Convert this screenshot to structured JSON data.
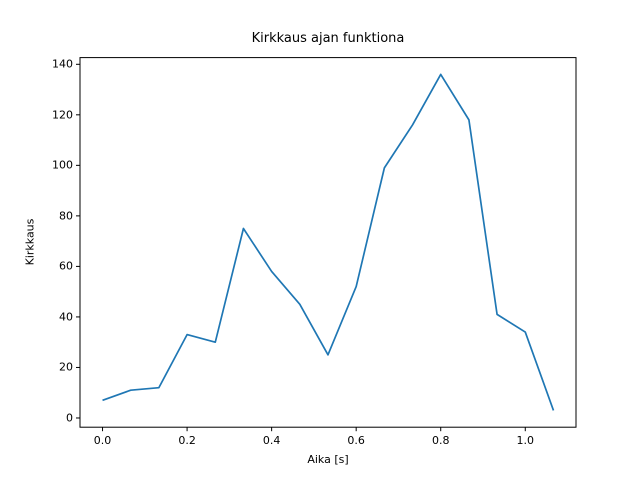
{
  "chart_data": {
    "type": "line",
    "title": "Kirkkaus ajan funktiona",
    "xlabel": "Aika [s]",
    "ylabel": "Kirkkaus",
    "x": [
      0,
      0.0667,
      0.1333,
      0.2,
      0.2667,
      0.3333,
      0.4,
      0.4667,
      0.5333,
      0.6,
      0.6667,
      0.7333,
      0.8,
      0.8667,
      0.9333,
      1.0,
      1.0667
    ],
    "y": [
      7,
      11,
      12,
      33,
      30,
      75,
      58,
      45,
      25,
      52,
      99,
      116,
      136,
      118,
      41,
      34,
      3
    ],
    "xlim": [
      -0.0533,
      1.12
    ],
    "ylim": [
      -3.65,
      142.65
    ],
    "x_ticks": {
      "values": [
        0.0,
        0.2,
        0.4,
        0.6,
        0.8,
        1.0
      ],
      "labels": [
        "0.0",
        "0.2",
        "0.4",
        "0.6",
        "0.8",
        "1.0"
      ]
    },
    "y_ticks": {
      "values": [
        0,
        20,
        40,
        60,
        80,
        100,
        120,
        140
      ],
      "labels": [
        "0",
        "20",
        "40",
        "60",
        "80",
        "100",
        "120",
        "140"
      ]
    },
    "line_color": "#1f77b4",
    "axis_color": "#000000",
    "background_color": "#ffffff",
    "grid": false,
    "legend": null
  }
}
